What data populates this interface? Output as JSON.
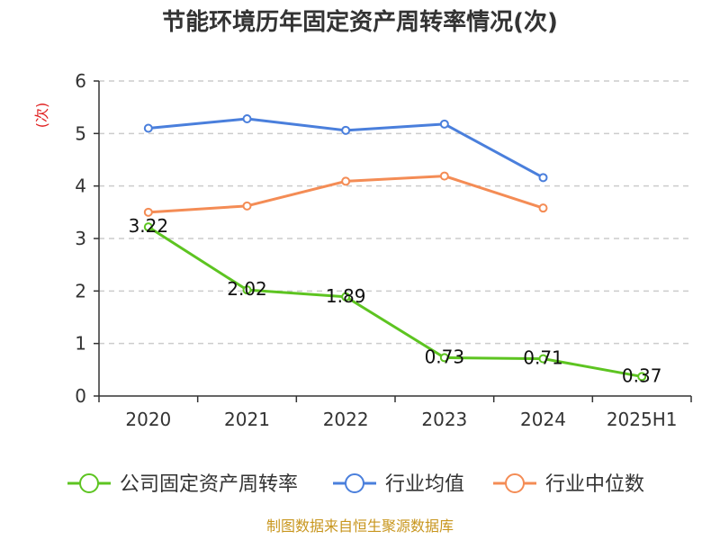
{
  "chart_data": {
    "type": "line",
    "title": "节能环境历年固定资产周转率情况(次)",
    "ylabel": "(次)",
    "xlabel": "",
    "categories": [
      "2020",
      "2021",
      "2022",
      "2023",
      "2024",
      "2025H1"
    ],
    "yticks": [
      "0",
      "1",
      "2",
      "3",
      "4",
      "5",
      "6"
    ],
    "ylim": [
      0,
      6
    ],
    "grid": "horizontal-dashed",
    "legend_position": "bottom",
    "series": [
      {
        "name": "公司固定资产周转率",
        "color": "#5dc421",
        "values": [
          3.22,
          2.02,
          1.89,
          0.73,
          0.71,
          0.37
        ],
        "labels": [
          "3.22",
          "2.02",
          "1.89",
          "0.73",
          "0.71",
          "0.37"
        ]
      },
      {
        "name": "行业均值",
        "color": "#4a7fdc",
        "values": [
          5.1,
          5.28,
          5.06,
          5.18,
          4.16,
          null
        ]
      },
      {
        "name": "行业中位数",
        "color": "#f48c55",
        "values": [
          3.5,
          3.62,
          4.09,
          4.19,
          3.58,
          null
        ]
      }
    ]
  },
  "source": "制图数据来自恒生聚源数据库"
}
